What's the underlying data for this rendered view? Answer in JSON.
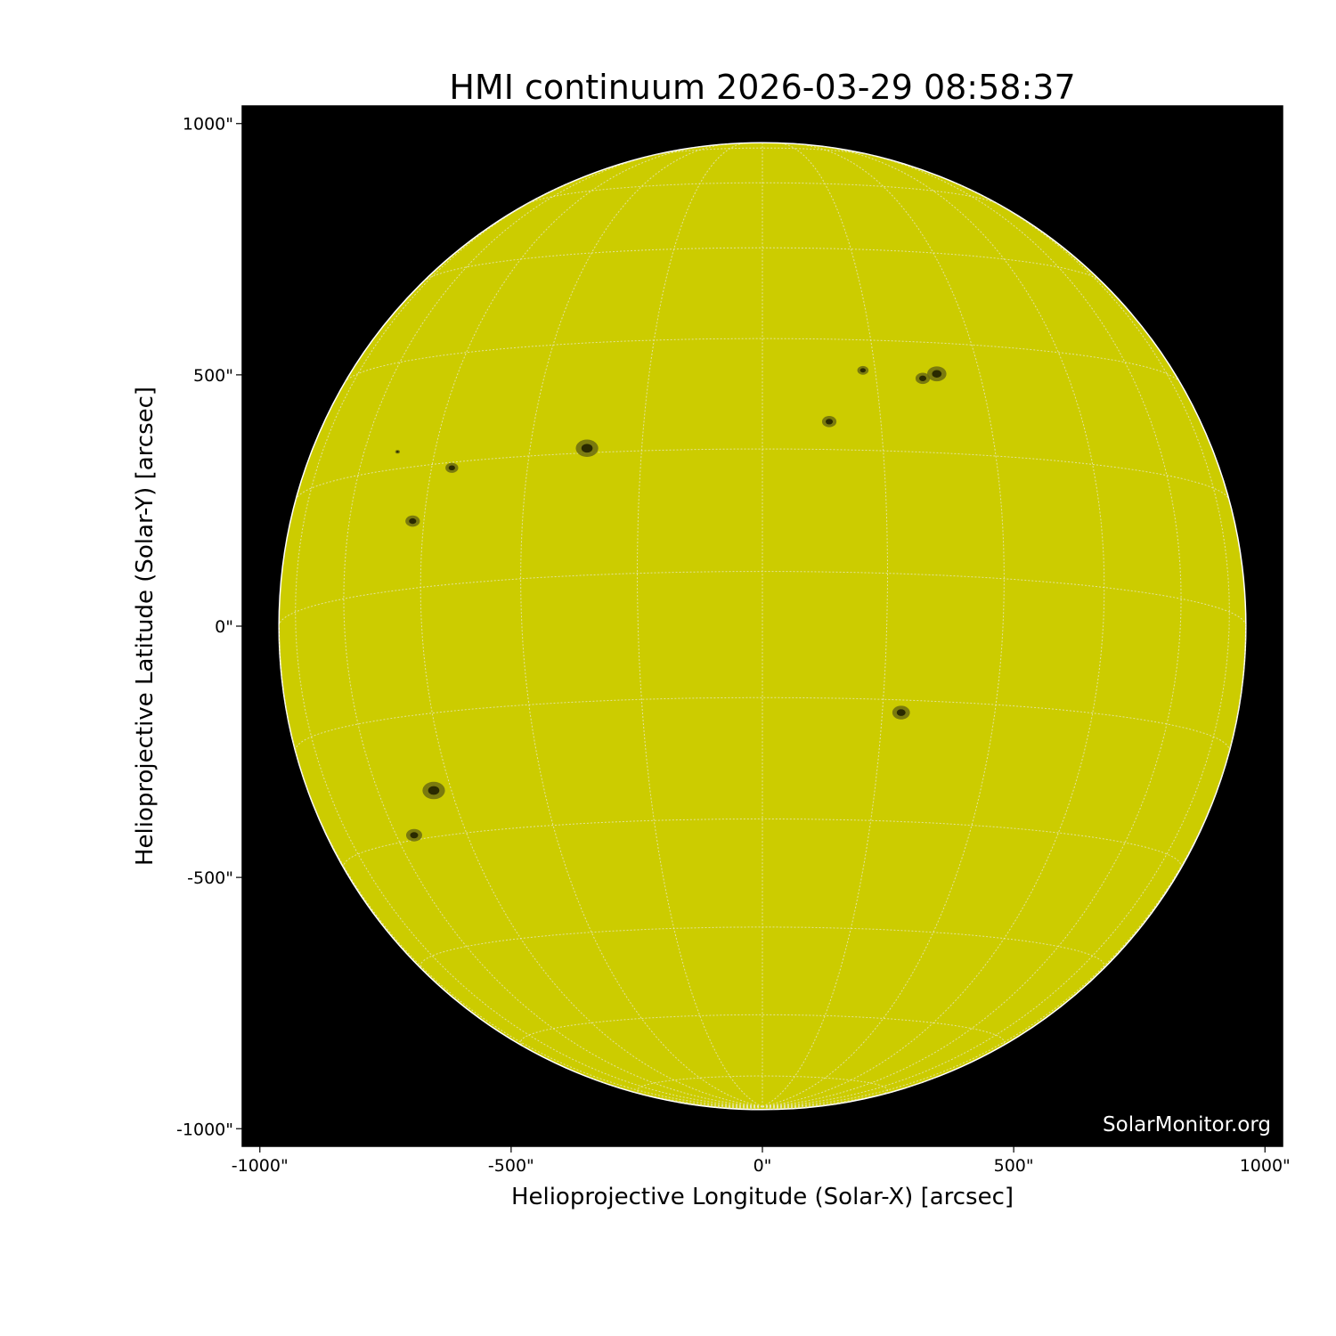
{
  "chart_data": {
    "type": "heatmap",
    "title": "HMI continuum 2026-03-29 08:58:37",
    "xlabel": "Helioprojective Longitude (Solar-X) [arcsec]",
    "ylabel": "Helioprojective Latitude (Solar-Y) [arcsec]",
    "xlim": [
      -1035,
      1035
    ],
    "ylim": [
      -1035,
      1035
    ],
    "xticks": [
      -1000,
      -500,
      0,
      500,
      1000
    ],
    "yticks": [
      -1000,
      -500,
      0,
      500,
      1000
    ],
    "xtick_labels": [
      "-1000\"",
      "-500\"",
      "0\"",
      "500\"",
      "1000\""
    ],
    "ytick_labels": [
      "-1000\"",
      "-500\"",
      "0\"",
      "500\"",
      "1000\""
    ],
    "solar_radius_arcsec": 962,
    "b0_deg": -6.5,
    "grid_spacing_deg": 15,
    "grid": true,
    "colors": {
      "disk": "#cccc00",
      "background": "#000000",
      "sunspot": "#2a2a00",
      "grid": "#e8e8c0"
    },
    "sunspots": [
      {
        "x": -349,
        "y": 354,
        "size": 14
      },
      {
        "x": -618,
        "y": 315,
        "size": 8
      },
      {
        "x": -696,
        "y": 209,
        "size": 9
      },
      {
        "x": -726,
        "y": 347,
        "size": 3
      },
      {
        "x": -654,
        "y": -327,
        "size": 14
      },
      {
        "x": -693,
        "y": -416,
        "size": 10
      },
      {
        "x": 276,
        "y": -172,
        "size": 11
      },
      {
        "x": 133,
        "y": 407,
        "size": 9
      },
      {
        "x": 200,
        "y": 509,
        "size": 7
      },
      {
        "x": 319,
        "y": 493,
        "size": 9
      },
      {
        "x": 347,
        "y": 502,
        "size": 12
      }
    ],
    "watermark": "SolarMonitor.org"
  }
}
